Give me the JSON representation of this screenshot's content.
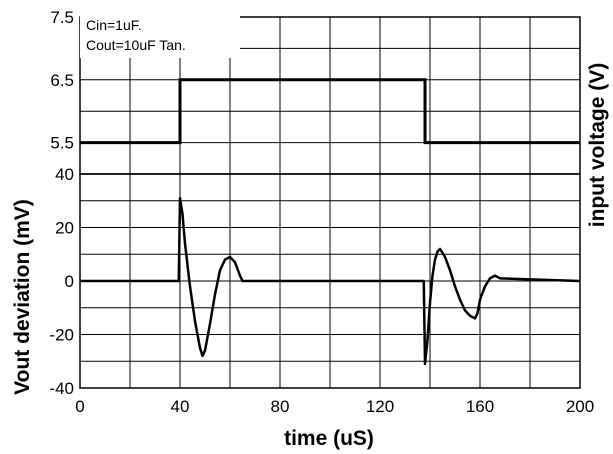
{
  "chart_data": [
    {
      "type": "line",
      "panel": "top",
      "annotations": [
        "Cin=1uF.",
        "Cout=10uF Tan."
      ],
      "ylabel": "input voltage (V)",
      "ylabel_side": "right",
      "ylim": [
        5,
        7.5
      ],
      "yticks": [
        "5.5",
        "6.5",
        "7.5"
      ],
      "xlim": [
        0,
        200
      ],
      "grid": true,
      "series": [
        {
          "x": [
            0,
            40,
            40,
            138,
            138,
            200
          ],
          "y": [
            5.5,
            5.5,
            6.5,
            6.5,
            5.5,
            5.5
          ]
        }
      ]
    },
    {
      "type": "line",
      "panel": "bottom",
      "xlabel": "time (uS)",
      "ylabel": "Vout deviation (mV)",
      "ylabel_side": "left",
      "xlim": [
        0,
        200
      ],
      "ylim": [
        -40,
        40
      ],
      "xticks": [
        "0",
        "40",
        "80",
        "120",
        "160",
        "200"
      ],
      "yticks": [
        "40",
        "20",
        "0",
        "-20",
        "-40"
      ],
      "grid": true,
      "series": [
        {
          "x": [
            0,
            39.5,
            40,
            41,
            42,
            44,
            46,
            48,
            49,
            50,
            52,
            54,
            56,
            58,
            60,
            62,
            64,
            65,
            66,
            137.5,
            138,
            139,
            140,
            141,
            142,
            143,
            144,
            146,
            148,
            150,
            152,
            154,
            156,
            158,
            159,
            160,
            162,
            164,
            166,
            168,
            200
          ],
          "y": [
            0,
            0,
            31,
            25,
            14,
            -2,
            -15,
            -25,
            -28,
            -26,
            -16,
            -5,
            4,
            8,
            9,
            7,
            2,
            0,
            0,
            0,
            -31,
            -22,
            -8,
            2,
            8,
            11,
            12,
            9,
            4,
            -2,
            -7,
            -11,
            -13,
            -14,
            -12,
            -7,
            -2,
            1,
            2,
            1,
            0
          ]
        }
      ]
    }
  ]
}
